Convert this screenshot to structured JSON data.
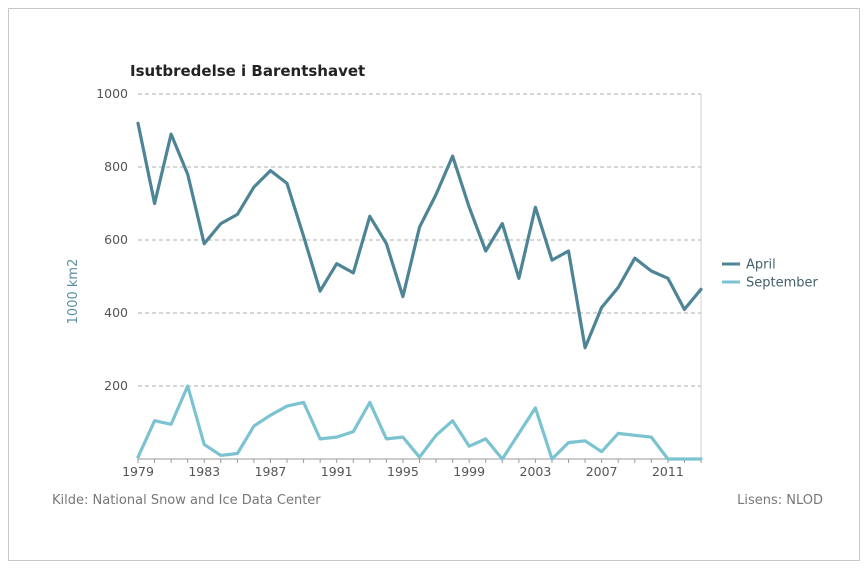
{
  "chart_data": {
    "type": "line",
    "title": "Isutbredelse i Barentshavet",
    "ylabel": "1000 km2",
    "xlabel": "",
    "ylim": [
      0,
      1000
    ],
    "xlim": [
      1979,
      2013
    ],
    "yticks": [
      200,
      400,
      600,
      800,
      1000
    ],
    "xticks": [
      1979,
      1983,
      1987,
      1991,
      1995,
      1999,
      2003,
      2007,
      2011
    ],
    "grid": "horizontal dashed",
    "legend_position": "right",
    "x": [
      1979,
      1980,
      1981,
      1982,
      1983,
      1984,
      1985,
      1986,
      1987,
      1988,
      1989,
      1990,
      1991,
      1992,
      1993,
      1994,
      1995,
      1996,
      1997,
      1998,
      1999,
      2000,
      2001,
      2002,
      2003,
      2004,
      2005,
      2006,
      2007,
      2008,
      2009,
      2010,
      2011,
      2012,
      2013
    ],
    "series": [
      {
        "name": "April",
        "color": "#4e8596",
        "values": [
          920,
          700,
          890,
          780,
          590,
          645,
          670,
          745,
          790,
          755,
          610,
          460,
          535,
          510,
          665,
          590,
          445,
          635,
          725,
          830,
          690,
          570,
          645,
          495,
          690,
          545,
          570,
          305,
          415,
          470,
          550,
          515,
          495,
          410,
          465
        ]
      },
      {
        "name": "September",
        "color": "#7cc3d2",
        "values": [
          5,
          105,
          95,
          200,
          40,
          10,
          15,
          90,
          120,
          145,
          155,
          55,
          60,
          75,
          155,
          55,
          60,
          5,
          65,
          105,
          35,
          55,
          0,
          70,
          140,
          0,
          45,
          50,
          20,
          70,
          65,
          60,
          0,
          0,
          0
        ]
      }
    ]
  },
  "footer": {
    "source": "Kilde: National Snow and Ice Data Center",
    "license": "Lisens: NLOD"
  }
}
